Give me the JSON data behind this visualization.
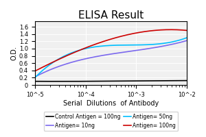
{
  "title": "ELISA Result",
  "xlabel": "Serial  Dilutions  of Antibody",
  "ylabel": "O.D.",
  "x_ticks": [
    0.01,
    0.001,
    0.0001,
    1e-05
  ],
  "x_tick_labels": [
    "10^-2",
    "10^-3",
    "10^-4",
    "10^-5"
  ],
  "ylim": [
    0,
    1.75
  ],
  "yticks": [
    0,
    0.2,
    0.4,
    0.6,
    0.8,
    1.0,
    1.2,
    1.4,
    1.6
  ],
  "lines": [
    {
      "label": "Control Antigen = 100ng",
      "color": "#000000",
      "y_values": [
        0.12,
        0.11,
        0.1,
        0.1
      ]
    },
    {
      "label": "Antigen= 10ng",
      "color": "#7B68EE",
      "y_values": [
        1.22,
        0.95,
        0.72,
        0.22
      ]
    },
    {
      "label": "Antigen= 50ng",
      "color": "#00BFFF",
      "y_values": [
        1.3,
        1.1,
        1.0,
        0.2
      ]
    },
    {
      "label": "Antigen= 100ng",
      "color": "#CC0000",
      "y_values": [
        1.5,
        1.43,
        1.02,
        0.38
      ]
    }
  ],
  "background_color": "#f0f0f0",
  "title_fontsize": 11,
  "axis_label_fontsize": 7,
  "tick_fontsize": 6,
  "legend_fontsize": 5.5
}
